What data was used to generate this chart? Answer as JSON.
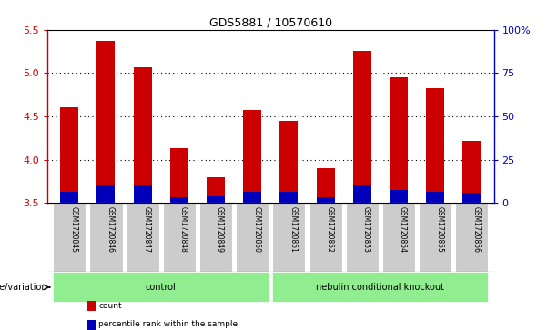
{
  "title": "GDS5881 / 10570610",
  "samples": [
    "GSM1720845",
    "GSM1720846",
    "GSM1720847",
    "GSM1720848",
    "GSM1720849",
    "GSM1720850",
    "GSM1720851",
    "GSM1720852",
    "GSM1720853",
    "GSM1720854",
    "GSM1720855",
    "GSM1720856"
  ],
  "red_tops": [
    4.6,
    5.37,
    5.07,
    4.13,
    3.8,
    4.57,
    4.45,
    3.9,
    5.25,
    4.95,
    4.82,
    4.22
  ],
  "blue_tops": [
    3.63,
    3.7,
    3.7,
    3.57,
    3.58,
    3.63,
    3.63,
    3.57,
    3.7,
    3.65,
    3.63,
    3.62
  ],
  "bar_bottom": 3.5,
  "ylim": [
    3.5,
    5.5
  ],
  "yticks_left": [
    3.5,
    4.0,
    4.5,
    5.0,
    5.5
  ],
  "yticks_right_vals": [
    0,
    25,
    50,
    75,
    100
  ],
  "y_right_labels": [
    "0",
    "25",
    "50",
    "75",
    "100%"
  ],
  "groups": [
    {
      "label": "control",
      "start": 0,
      "end": 5,
      "color": "#90ee90"
    },
    {
      "label": "nebulin conditional knockout",
      "start": 6,
      "end": 11,
      "color": "#90ee90"
    }
  ],
  "group_label_prefix": "genotype/variation",
  "red_color": "#cc0000",
  "blue_color": "#0000bb",
  "bar_width": 0.5,
  "bg_color": "#ffffff",
  "right_axis_color": "#0000bb",
  "legend_items": [
    {
      "label": "count",
      "color": "#cc0000"
    },
    {
      "label": "percentile rank within the sample",
      "color": "#0000bb"
    }
  ],
  "sample_bg_color": "#cccccc",
  "n_samples": 12
}
